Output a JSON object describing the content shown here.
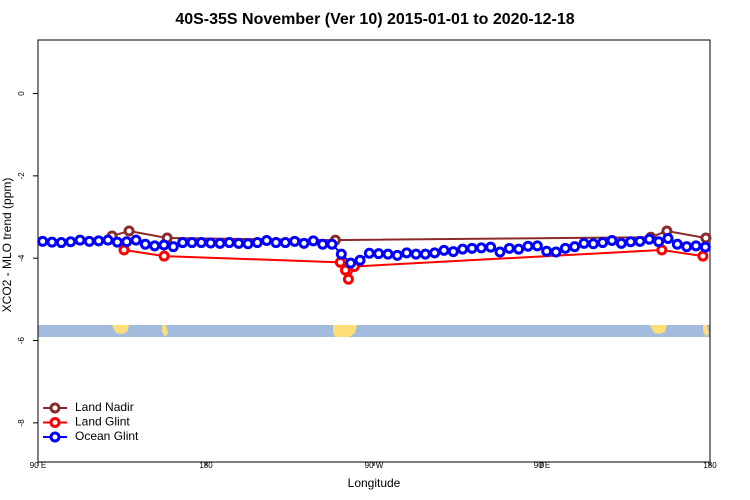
{
  "chart_data": {
    "type": "line",
    "title": "40S-35S November (Ver 10)   2015-01-01 to 2020-12-18",
    "x_label": "Longitude",
    "y_label": "XCO2 - MLO trend (ppm)",
    "xlim": [
      90,
      450
    ],
    "ylim": [
      -8.95,
      1.3
    ],
    "xticks": [
      {
        "value": 90,
        "label": "90 E"
      },
      {
        "value": 180,
        "label": "180"
      },
      {
        "value": 270,
        "label": "90 W"
      },
      {
        "value": 360,
        "label": "0"
      },
      {
        "value": 450,
        "label": "180"
      }
    ],
    "xticks_extra": [
      {
        "value": 450,
        "label": "90 E"
      }
    ],
    "yticks": [
      -8,
      -6,
      -4,
      -2,
      0
    ],
    "legend": "top-left",
    "series": [
      {
        "name": "Land Nadir",
        "color": "#8b2a2a",
        "x": [
          129.7,
          138.8,
          159.2,
          249.3,
          418.3,
          426.9,
          447.8
        ],
        "values": [
          -3.46,
          -3.34,
          -3.51,
          -3.56,
          -3.49,
          -3.34,
          -3.51
        ]
      },
      {
        "name": "Land Glint",
        "color": "#ff0000",
        "x": [
          136.1,
          157.6,
          252.0,
          254.7,
          256.3,
          259.5,
          424.2,
          446.2
        ],
        "values": [
          -3.8,
          -3.95,
          -4.1,
          -4.29,
          -4.51,
          -4.2,
          -3.8,
          -3.95
        ]
      },
      {
        "name": "Ocean Glint",
        "color": "#0000ff",
        "x": [
          92.5,
          97.5,
          102.5,
          107.5,
          112.5,
          117.5,
          122.5,
          127.5,
          132.5,
          137.5,
          142.5,
          147.5,
          152.5,
          157.5,
          162.5,
          167.5,
          172.5,
          177.5,
          182.5,
          187.5,
          192.5,
          197.5,
          202.5,
          207.5,
          212.5,
          217.5,
          222.5,
          227.5,
          232.5,
          237.5,
          242.5,
          247.5,
          252.5,
          257.5,
          262.5,
          267.5,
          272.5,
          277.5,
          282.5,
          287.5,
          292.5,
          297.5,
          302.5,
          307.5,
          312.5,
          317.5,
          322.5,
          327.5,
          332.5,
          337.5,
          342.5,
          347.5,
          352.5,
          357.5,
          362.5,
          367.5,
          372.5,
          377.5,
          382.5,
          387.5,
          392.5,
          397.5,
          402.5,
          407.5,
          412.5,
          417.5,
          422.5,
          427.5,
          432.5,
          437.5,
          442.5,
          447.5
        ],
        "values": [
          -3.59,
          -3.61,
          -3.62,
          -3.6,
          -3.56,
          -3.59,
          -3.58,
          -3.56,
          -3.61,
          -3.6,
          -3.56,
          -3.66,
          -3.7,
          -3.68,
          -3.72,
          -3.62,
          -3.62,
          -3.62,
          -3.63,
          -3.64,
          -3.62,
          -3.64,
          -3.65,
          -3.62,
          -3.57,
          -3.62,
          -3.62,
          -3.59,
          -3.64,
          -3.58,
          -3.66,
          -3.66,
          -3.9,
          -4.12,
          -4.05,
          -3.88,
          -3.89,
          -3.9,
          -3.93,
          -3.87,
          -3.9,
          -3.9,
          -3.87,
          -3.81,
          -3.84,
          -3.78,
          -3.76,
          -3.75,
          -3.73,
          -3.85,
          -3.76,
          -3.78,
          -3.71,
          -3.7,
          -3.83,
          -3.85,
          -3.76,
          -3.72,
          -3.64,
          -3.65,
          -3.62,
          -3.57,
          -3.64,
          -3.6,
          -3.59,
          -3.54,
          -3.6,
          -3.52,
          -3.66,
          -3.72,
          -3.7,
          -3.73
        ]
      }
    ]
  }
}
